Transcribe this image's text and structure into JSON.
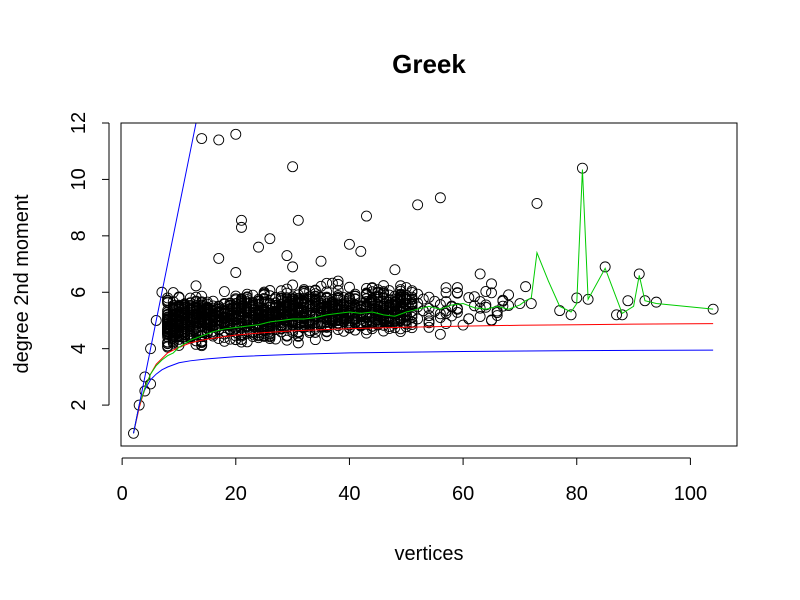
{
  "chart_data": {
    "type": "scatter",
    "title": "Greek",
    "xlabel": "vertices",
    "ylabel": "degree 2nd moment",
    "xlim": [
      -0.2,
      108.2
    ],
    "ylim": [
      0.55,
      12.0
    ],
    "xticks": [
      0,
      20,
      40,
      60,
      80,
      100
    ],
    "yticks": [
      2,
      4,
      6,
      8,
      10,
      12
    ],
    "grid": false,
    "legend": "none",
    "colors": {
      "points": "#000000",
      "upper_bound": "#0000ff",
      "lower_bound": "#0000ff",
      "expected": "#ff0000",
      "mean": "#00cc00"
    },
    "labeled_points": [
      {
        "x": 2,
        "y": 1.0
      },
      {
        "x": 3,
        "y": 2.0
      },
      {
        "x": 4,
        "y": 2.5
      },
      {
        "x": 4,
        "y": 3.0
      },
      {
        "x": 5,
        "y": 4.0
      },
      {
        "x": 5,
        "y": 2.75
      },
      {
        "x": 6,
        "y": 5.0
      },
      {
        "x": 7,
        "y": 6.0
      },
      {
        "x": 8,
        "y": 5.8
      },
      {
        "x": 14,
        "y": 11.45
      },
      {
        "x": 17,
        "y": 11.4
      },
      {
        "x": 20,
        "y": 11.6
      },
      {
        "x": 30,
        "y": 10.45
      },
      {
        "x": 21,
        "y": 8.55
      },
      {
        "x": 21,
        "y": 8.3
      },
      {
        "x": 26,
        "y": 7.9
      },
      {
        "x": 24,
        "y": 7.6
      },
      {
        "x": 31,
        "y": 8.55
      },
      {
        "x": 43,
        "y": 8.7
      },
      {
        "x": 52,
        "y": 9.1
      },
      {
        "x": 56,
        "y": 9.35
      },
      {
        "x": 73,
        "y": 9.15
      },
      {
        "x": 81,
        "y": 10.4
      },
      {
        "x": 85,
        "y": 6.9
      },
      {
        "x": 91,
        "y": 6.65
      },
      {
        "x": 104,
        "y": 5.4
      },
      {
        "x": 94,
        "y": 5.65
      },
      {
        "x": 92,
        "y": 5.7
      },
      {
        "x": 88,
        "y": 5.2
      },
      {
        "x": 89,
        "y": 5.7
      },
      {
        "x": 87,
        "y": 5.2
      },
      {
        "x": 80,
        "y": 5.8
      },
      {
        "x": 82,
        "y": 5.75
      },
      {
        "x": 79,
        "y": 5.2
      },
      {
        "x": 77,
        "y": 5.35
      },
      {
        "x": 72,
        "y": 5.6
      },
      {
        "x": 71,
        "y": 6.2
      },
      {
        "x": 70,
        "y": 5.6
      },
      {
        "x": 63,
        "y": 6.65
      },
      {
        "x": 65,
        "y": 6.3
      },
      {
        "x": 40,
        "y": 7.7
      },
      {
        "x": 42,
        "y": 7.45
      },
      {
        "x": 35,
        "y": 7.1
      },
      {
        "x": 29,
        "y": 7.3
      },
      {
        "x": 30,
        "y": 6.9
      },
      {
        "x": 17,
        "y": 7.2
      },
      {
        "x": 20,
        "y": 6.7
      },
      {
        "x": 48,
        "y": 6.8
      }
    ],
    "cluster": {
      "x_min": 8,
      "x_max": 68,
      "count": 1500,
      "seed": 7
    },
    "mean_line": {
      "x": [
        2,
        3,
        4,
        5,
        6,
        7,
        8,
        9,
        10,
        12,
        14,
        16,
        18,
        20,
        22,
        24,
        26,
        28,
        30,
        32,
        34,
        36,
        38,
        40,
        42,
        44,
        46,
        48,
        50,
        52,
        54,
        56,
        58,
        60,
        62,
        64,
        66,
        68,
        70,
        71,
        72,
        73,
        75,
        77,
        79,
        80,
        81,
        82,
        85,
        88,
        90,
        91,
        92,
        94,
        104
      ],
      "y": [
        1.0,
        2.0,
        2.6,
        3.1,
        3.4,
        3.6,
        3.75,
        3.85,
        4.05,
        4.3,
        4.45,
        4.6,
        4.7,
        4.75,
        4.8,
        4.85,
        4.95,
        5.0,
        5.05,
        5.05,
        5.1,
        5.2,
        5.25,
        5.3,
        5.25,
        5.3,
        5.2,
        5.15,
        5.3,
        5.4,
        5.5,
        5.4,
        5.55,
        5.6,
        5.45,
        5.4,
        5.5,
        5.4,
        5.55,
        5.7,
        5.8,
        7.4,
        6.4,
        5.5,
        5.3,
        5.6,
        10.35,
        5.75,
        6.85,
        5.25,
        5.5,
        6.6,
        5.7,
        5.6,
        5.4
      ]
    },
    "expected_line": {
      "x": [
        2,
        3,
        4,
        5,
        6,
        8,
        10,
        12,
        14,
        16,
        20,
        25,
        30,
        40,
        50,
        60,
        70,
        80,
        90,
        104
      ],
      "y": [
        1.0,
        1.9,
        2.6,
        3.1,
        3.45,
        3.85,
        4.05,
        4.2,
        4.3,
        4.37,
        4.48,
        4.57,
        4.63,
        4.71,
        4.76,
        4.8,
        4.83,
        4.85,
        4.87,
        4.89
      ]
    },
    "upper_bound_line": {
      "x": [
        2,
        4,
        6,
        8,
        10,
        12,
        13.2
      ],
      "y": [
        1.0,
        3.0,
        5.0,
        7.0,
        9.0,
        11.0,
        12.2
      ]
    },
    "lower_bound_line": {
      "x": [
        2,
        3,
        4,
        5,
        6,
        7,
        8,
        10,
        12,
        15,
        20,
        30,
        40,
        60,
        80,
        104
      ],
      "y": [
        1.0,
        2.0,
        2.55,
        2.9,
        3.1,
        3.25,
        3.35,
        3.5,
        3.57,
        3.64,
        3.72,
        3.8,
        3.85,
        3.9,
        3.93,
        3.95
      ]
    }
  }
}
